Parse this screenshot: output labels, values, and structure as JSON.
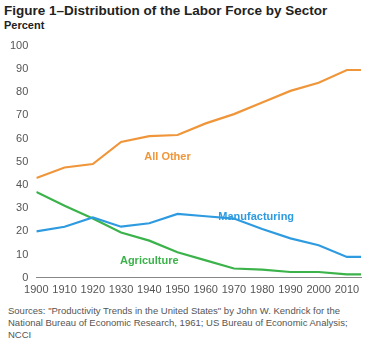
{
  "chart_data": {
    "type": "line",
    "title": "Figure 1–Distribution of the Labor Force by Sector",
    "y_label": "Percent",
    "source": "Sources: \"Productivity Trends in the United States\" by John W. Kendrick for the National Bureau of Economic Research, 1961; US Bureau of Economic Analysis; NCCI",
    "x": [
      1900,
      1910,
      1920,
      1930,
      1940,
      1950,
      1960,
      1970,
      1980,
      1990,
      2000,
      2010,
      2015
    ],
    "series": [
      {
        "name": "All Other",
        "color": "#f0963a",
        "values": [
          43,
          47.5,
          49,
          58.5,
          61,
          61.5,
          66.5,
          70.5,
          75.5,
          80.5,
          84,
          89.5,
          89.5
        ]
      },
      {
        "name": "Manufacturing",
        "color": "#2e9be0",
        "values": [
          20,
          22,
          26,
          22,
          23.5,
          27.5,
          26.5,
          25.5,
          21,
          17,
          14,
          9,
          9
        ]
      },
      {
        "name": "Agriculture",
        "color": "#3bb34a",
        "values": [
          37,
          31,
          25.5,
          19.5,
          16,
          11,
          7.5,
          4,
          3.5,
          2.5,
          2.5,
          1.5,
          1.5
        ]
      }
    ],
    "xlim": [
      1900,
      2015
    ],
    "xticks": [
      1900,
      1910,
      1920,
      1930,
      1940,
      1950,
      1960,
      1970,
      1980,
      1990,
      2000,
      2010
    ],
    "ylim": [
      0,
      100
    ],
    "yticks": [
      0,
      10,
      20,
      30,
      40,
      50,
      60,
      70,
      80,
      90,
      100
    ],
    "grid": false
  }
}
